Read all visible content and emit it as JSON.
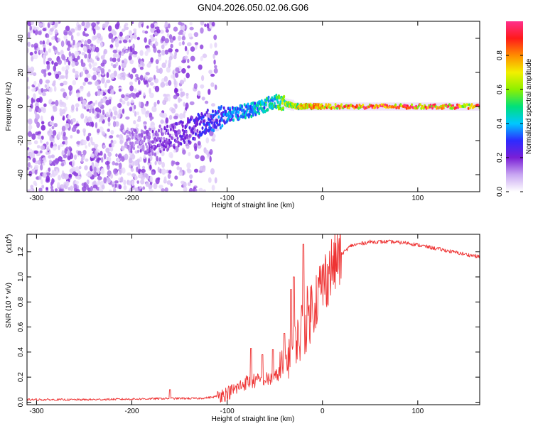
{
  "title": "GN04.2026.050.02.06.G06",
  "chart_data": [
    {
      "type": "heatmap",
      "name": "spectrogram",
      "xlabel": "Height of straight line (km)",
      "ylabel": "Frequency (Hz)",
      "xlim": [
        -310,
        165
      ],
      "ylim": [
        -50,
        50
      ],
      "xticks": [
        -300,
        -200,
        -100,
        0,
        100
      ],
      "yticks": [
        -40,
        -20,
        0,
        20,
        40
      ],
      "colorbar": {
        "label": "Normalized spectral amplitude",
        "range": [
          0,
          1
        ],
        "ticks": [
          0.0,
          0.2,
          0.4,
          0.6,
          0.8
        ],
        "tick_labels": [
          "0.0",
          "0.2",
          "0.4",
          "0.6",
          "0.8"
        ],
        "colormap": [
          "#ffffff",
          "#c9a7f2",
          "#7a1fd6",
          "#2d2bff",
          "#00c8ff",
          "#00e07a",
          "#8ef000",
          "#f2f000",
          "#ff8c00",
          "#ff1a1a",
          "#ff2f8c"
        ]
      },
      "ridge_frequency": [
        {
          "x": -200,
          "y": -20
        },
        {
          "x": -175,
          "y": -21
        },
        {
          "x": -150,
          "y": -16
        },
        {
          "x": -125,
          "y": -10
        },
        {
          "x": -100,
          "y": -5
        },
        {
          "x": -75,
          "y": -2
        },
        {
          "x": -50,
          "y": 3
        },
        {
          "x": -25,
          "y": 0
        },
        {
          "x": 0,
          "y": 0
        },
        {
          "x": 50,
          "y": 0
        },
        {
          "x": 100,
          "y": 0
        },
        {
          "x": 160,
          "y": 0
        }
      ],
      "ridge_amplitude": [
        {
          "x": -200,
          "y": 0.15
        },
        {
          "x": -150,
          "y": 0.22
        },
        {
          "x": -125,
          "y": 0.3
        },
        {
          "x": -100,
          "y": 0.4
        },
        {
          "x": -75,
          "y": 0.45
        },
        {
          "x": -50,
          "y": 0.55
        },
        {
          "x": -25,
          "y": 0.8
        },
        {
          "x": 0,
          "y": 0.9
        },
        {
          "x": 50,
          "y": 0.95
        },
        {
          "x": 100,
          "y": 0.95
        },
        {
          "x": 160,
          "y": 0.9
        }
      ],
      "noise_region_x": [
        -310,
        -110
      ]
    },
    {
      "type": "line",
      "name": "snr",
      "xlabel": "Height of straight line (km)",
      "ylabel": "SNR (10 * v/v)",
      "y_multiplier": "(x10",
      "y_multiplier_exp": "4",
      "y_multiplier_close": ")",
      "xlim": [
        -310,
        165
      ],
      "ylim": [
        -0.02,
        1.34
      ],
      "xticks": [
        -300,
        -200,
        -100,
        0,
        100
      ],
      "yticks": [
        0.0,
        0.2,
        0.4,
        0.6,
        0.8,
        1.0,
        1.2
      ],
      "ytick_labels": [
        "0.0",
        "0.2",
        "0.4",
        "0.6",
        "0.8",
        "1.0",
        "1.2"
      ],
      "color": "#ee3333",
      "trend": [
        {
          "x": -310,
          "y": 0.02
        },
        {
          "x": -250,
          "y": 0.02
        },
        {
          "x": -200,
          "y": 0.025
        },
        {
          "x": -160,
          "y": 0.03
        },
        {
          "x": -130,
          "y": 0.03
        },
        {
          "x": -115,
          "y": 0.04
        },
        {
          "x": -100,
          "y": 0.07
        },
        {
          "x": -90,
          "y": 0.11
        },
        {
          "x": -80,
          "y": 0.16
        },
        {
          "x": -70,
          "y": 0.17
        },
        {
          "x": -60,
          "y": 0.18
        },
        {
          "x": -50,
          "y": 0.19
        },
        {
          "x": -40,
          "y": 0.3
        },
        {
          "x": -30,
          "y": 0.45
        },
        {
          "x": -20,
          "y": 0.6
        },
        {
          "x": -10,
          "y": 0.78
        },
        {
          "x": 0,
          "y": 0.94
        },
        {
          "x": 10,
          "y": 1.08
        },
        {
          "x": 20,
          "y": 1.18
        },
        {
          "x": 30,
          "y": 1.25
        },
        {
          "x": 50,
          "y": 1.28
        },
        {
          "x": 70,
          "y": 1.28
        },
        {
          "x": 90,
          "y": 1.27
        },
        {
          "x": 110,
          "y": 1.24
        },
        {
          "x": 130,
          "y": 1.21
        },
        {
          "x": 150,
          "y": 1.18
        },
        {
          "x": 165,
          "y": 1.16
        }
      ],
      "peaks": [
        {
          "x": -160,
          "y": 0.1
        },
        {
          "x": -75,
          "y": 0.43
        },
        {
          "x": -63,
          "y": 0.38
        },
        {
          "x": -52,
          "y": 0.42
        },
        {
          "x": -40,
          "y": 0.55
        },
        {
          "x": -33,
          "y": 0.9
        },
        {
          "x": -30,
          "y": 1.0
        },
        {
          "x": -20,
          "y": 1.26
        }
      ]
    }
  ]
}
